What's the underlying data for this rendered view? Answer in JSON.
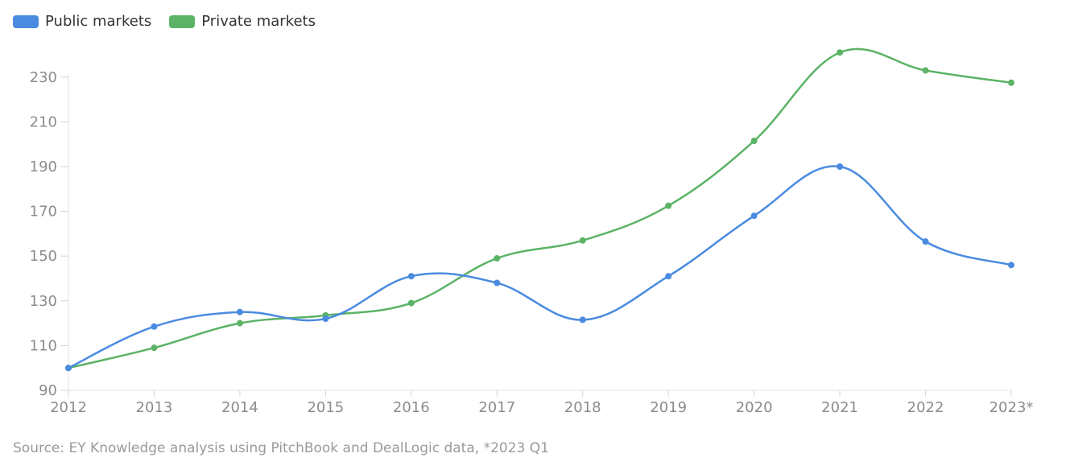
{
  "legend": [
    {
      "name": "Public markets",
      "color": "#4a8be0"
    },
    {
      "name": "Private markets",
      "color": "#5cb366"
    }
  ],
  "source_note": "Source: EY Knowledge analysis using PitchBook and DealLogic data, *2023 Q1",
  "chart_data": {
    "type": "line",
    "title": "",
    "xlabel": "",
    "ylabel": "",
    "x": [
      "2012",
      "2013",
      "2014",
      "2015",
      "2016",
      "2017",
      "2018",
      "2019",
      "2020",
      "2021",
      "2022",
      "2023*"
    ],
    "ylim": [
      90,
      240
    ],
    "yticks": [
      90,
      110,
      130,
      150,
      170,
      190,
      210,
      230
    ],
    "grid": false,
    "legend_position": "top-left",
    "series": [
      {
        "name": "Public markets",
        "color": "#4a8be0",
        "values": [
          100,
          118.5,
          125,
          122,
          141,
          138,
          121.5,
          141,
          168,
          190,
          156.5,
          146
        ]
      },
      {
        "name": "Private markets",
        "color": "#5cb366",
        "values": [
          100,
          109,
          120,
          123.5,
          129,
          149,
          157,
          172.5,
          201.5,
          241,
          233,
          227.5
        ]
      }
    ]
  }
}
